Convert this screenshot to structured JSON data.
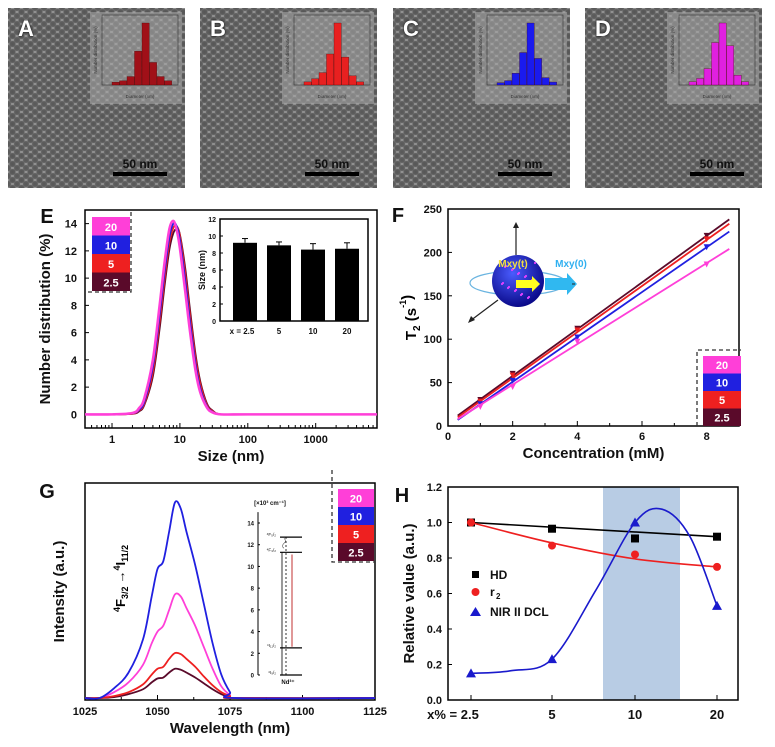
{
  "tem_panels": [
    {
      "label": "A",
      "scale_bar": "50 nm",
      "hist_color": "#a01018",
      "hist_ylabel": "Number distribution (%)",
      "hist_xlabel": "Diameter (nm)",
      "hist": [
        1,
        1.5,
        3,
        12,
        22,
        8,
        3,
        1.5
      ]
    },
    {
      "label": "B",
      "scale_bar": "50 nm",
      "hist_color": "#e82020",
      "hist_ylabel": "Number distribution (%)",
      "hist_xlabel": "Diameter (nm)",
      "hist": [
        1,
        2,
        4,
        10,
        20,
        9,
        3,
        1
      ]
    },
    {
      "label": "C",
      "scale_bar": "50 nm",
      "hist_color": "#1a1aee",
      "hist_ylabel": "Number distribution (%)",
      "hist_xlabel": "Diameter (nm)",
      "hist": [
        0.8,
        1.5,
        4,
        11,
        21,
        9,
        2.5,
        1
      ]
    },
    {
      "label": "D",
      "scale_bar": "50 nm",
      "hist_color": "#e020e0",
      "hist_ylabel": "Number distribution (%)",
      "hist_xlabel": "Diameter (nm)",
      "hist": [
        1,
        2,
        5,
        13,
        19,
        12,
        3,
        1
      ]
    }
  ],
  "legend": [
    {
      "label": "20",
      "color": "#ff3fd8"
    },
    {
      "label": "10",
      "color": "#2020e0"
    },
    {
      "label": "5",
      "color": "#ee2020"
    },
    {
      "label": "2.5",
      "color": "#5a0a2a"
    }
  ],
  "chart_data": [
    {
      "panel": "E",
      "type": "line",
      "xscale": "log",
      "xlabel": "Size (nm)",
      "ylabel": "Number distribution (%)",
      "xlim": [
        0.4,
        8000
      ],
      "ylim": [
        -1,
        15
      ],
      "xticks": [
        "1",
        "10",
        "100",
        "1000"
      ],
      "yticks": [
        "0",
        "2",
        "4",
        "6",
        "8",
        "10",
        "12",
        "14"
      ],
      "legend_position": "top-left",
      "x": [
        0.4,
        1,
        2,
        2.5,
        3,
        4,
        5,
        6,
        7,
        8,
        9,
        10,
        12,
        14,
        17,
        20,
        25,
        30,
        40,
        100,
        1000,
        8000
      ],
      "series": [
        {
          "name": "20",
          "values": [
            0,
            0,
            0.1,
            0.45,
            1.2,
            4.0,
            7.9,
            11.3,
            13.6,
            14.2,
            13.5,
            12.2,
            9.0,
            6.2,
            3.2,
            1.6,
            0.5,
            0.15,
            0,
            0,
            0,
            0
          ]
        },
        {
          "name": "10",
          "values": [
            0,
            0,
            0.07,
            0.33,
            0.94,
            3.5,
            7.2,
            10.6,
            13.0,
            14.0,
            13.8,
            12.8,
            9.8,
            6.9,
            3.7,
            1.9,
            0.6,
            0.2,
            0,
            0,
            0,
            0
          ]
        },
        {
          "name": "5",
          "values": [
            0,
            0,
            0.05,
            0.28,
            0.8,
            3.1,
            6.7,
            10.1,
            12.6,
            13.7,
            13.8,
            13.1,
            10.3,
            7.4,
            4.1,
            2.2,
            0.7,
            0.25,
            0,
            0,
            0,
            0
          ]
        },
        {
          "name": "2.5",
          "values": [
            0,
            0,
            0.04,
            0.22,
            0.7,
            2.8,
            6.2,
            9.6,
            12.1,
            13.3,
            13.6,
            13.2,
            10.7,
            7.8,
            4.4,
            2.4,
            0.8,
            0.3,
            0,
            0,
            0,
            0
          ]
        }
      ],
      "inset": {
        "type": "bar",
        "ylabel": "Size (nm)",
        "ylim": [
          0,
          12
        ],
        "yticks": [
          "0",
          "2",
          "4",
          "6",
          "8",
          "10",
          "12"
        ],
        "categories": [
          "x = 2.5",
          "5",
          "10",
          "20"
        ],
        "values": [
          9.2,
          8.9,
          8.4,
          8.5
        ],
        "errors": [
          0.5,
          0.4,
          0.7,
          0.7
        ],
        "color": "#000000"
      }
    },
    {
      "panel": "F",
      "type": "scatter",
      "xlabel": "Concentration (mM)",
      "ylabel_main": "T",
      "ylabel_sub": "2",
      "ylabel_unit": " (s",
      "ylabel_sup": "-1",
      "ylabel_close": ")",
      "xlim": [
        0,
        9
      ],
      "ylim": [
        0,
        250
      ],
      "xticks": [
        "0",
        "2",
        "4",
        "6",
        "8"
      ],
      "yticks": [
        "0",
        "50",
        "100",
        "150",
        "200",
        "250"
      ],
      "legend_position": "bottom-right",
      "x": [
        1,
        2,
        4,
        8
      ],
      "series": [
        {
          "name": "2.5",
          "values": [
            30,
            60,
            112,
            219
          ],
          "fit": [
            [
              0.3,
              12
            ],
            [
              8.7,
              238
            ]
          ]
        },
        {
          "name": "5",
          "values": [
            28,
            58,
            110,
            215
          ],
          "fit": [
            [
              0.3,
              10
            ],
            [
              8.7,
              233
            ]
          ]
        },
        {
          "name": "10",
          "values": [
            25,
            52,
            102,
            206
          ],
          "fit": [
            [
              0.3,
              7
            ],
            [
              8.7,
              224
            ]
          ]
        },
        {
          "name": "20",
          "values": [
            22,
            45,
            97,
            186
          ],
          "fit": [
            [
              0.3,
              8
            ],
            [
              8.7,
              204
            ]
          ]
        }
      ],
      "inset_labels": {
        "moment_t": "Mxy(t)",
        "moment_0": "Mxy(0)"
      }
    },
    {
      "panel": "G",
      "type": "line",
      "xlabel": "Wavelength (nm)",
      "ylabel": "Intensity (a.u.)",
      "xlim": [
        1025,
        1125
      ],
      "ylim": [
        -0.01,
        1.1
      ],
      "xticks": [
        "1025",
        "1050",
        "1075",
        "1100",
        "1125"
      ],
      "legend_position": "top-right",
      "transition": {
        "upper": "4",
        "upper_term": "F",
        "upper_j": "3/2",
        "lower": "4",
        "lower_term": "I",
        "lower_j": "11/2",
        "arrow": "→"
      },
      "x": [
        1025,
        1030,
        1035,
        1040,
        1045,
        1048,
        1050,
        1052,
        1054,
        1056,
        1058,
        1060,
        1063,
        1066,
        1069,
        1072,
        1075,
        1077,
        1125
      ],
      "series": [
        {
          "name": "10",
          "values": [
            0,
            0,
            0.05,
            0.13,
            0.3,
            0.52,
            0.66,
            0.7,
            0.85,
            1.0,
            0.97,
            0.85,
            0.68,
            0.48,
            0.28,
            0.12,
            0.03,
            0,
            0
          ]
        },
        {
          "name": "20",
          "values": [
            0,
            0,
            0.03,
            0.08,
            0.17,
            0.28,
            0.34,
            0.37,
            0.45,
            0.53,
            0.52,
            0.46,
            0.37,
            0.26,
            0.15,
            0.06,
            0.015,
            0,
            0
          ]
        },
        {
          "name": "5",
          "values": [
            0,
            0,
            0.01,
            0.03,
            0.07,
            0.12,
            0.15,
            0.16,
            0.2,
            0.23,
            0.225,
            0.2,
            0.16,
            0.11,
            0.065,
            0.03,
            0.01,
            0,
            0
          ]
        },
        {
          "name": "2.5",
          "values": [
            0,
            0,
            0.005,
            0.02,
            0.045,
            0.08,
            0.1,
            0.105,
            0.13,
            0.15,
            0.145,
            0.13,
            0.105,
            0.075,
            0.045,
            0.02,
            0.005,
            0,
            0
          ]
        }
      ],
      "energy_inset": {
        "unit": "[×10³ cm⁻¹]",
        "ylim": [
          0,
          15
        ],
        "yticks": [
          "0",
          "2",
          "4",
          "6",
          "8",
          "10",
          "12",
          "14"
        ],
        "levels": [
          {
            "label": "⁴F₅/₂",
            "energy": 12.7
          },
          {
            "label": "⁴F₃/₂",
            "energy": 11.3
          },
          {
            "label": "⁴I₁₁/₂",
            "energy": 2.5
          },
          {
            "label": "⁴I₉/₂",
            "energy": 0
          }
        ],
        "ion": "Nd³⁺"
      }
    },
    {
      "panel": "H",
      "type": "line",
      "xlabel": "",
      "ylabel": "Relative value (a.u.)",
      "ylim": [
        0,
        1.2
      ],
      "yticks": [
        "0.0",
        "0.2",
        "0.4",
        "0.6",
        "0.8",
        "1.0",
        "1.2"
      ],
      "categories": [
        "x% = 2.5",
        "5",
        "10",
        "20"
      ],
      "highlight_region": [
        "between 5 and 10",
        "between 10 and 20"
      ],
      "highlight_color": "#b8cce4",
      "legend_position": "center-left",
      "series": [
        {
          "name": "HD",
          "marker": "square",
          "color": "#000000",
          "values": [
            1.0,
            0.965,
            0.91,
            0.92
          ]
        },
        {
          "name": "r",
          "name_sub": "2",
          "marker": "circle",
          "color": "#ee2020",
          "values": [
            1.0,
            0.87,
            0.82,
            0.75
          ]
        },
        {
          "name": "NIR II DCL",
          "marker": "triangle",
          "color": "#1a1acc",
          "values": [
            0.15,
            0.23,
            1.0,
            0.53
          ]
        }
      ]
    }
  ],
  "panel_labels": {
    "E": "E",
    "F": "F",
    "G": "G",
    "H": "H"
  }
}
